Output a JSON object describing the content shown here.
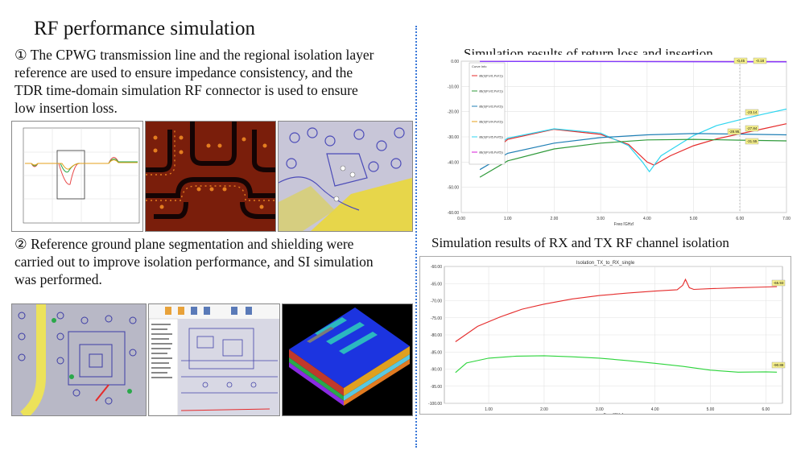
{
  "left": {
    "title": "RF performance simulation",
    "para1_lines": [
      "① The CPWG transmission line and the regional isolation layer",
      "reference are used to ensure impedance consistency, and the",
      "TDR time-domain simulation RF connector is used to ensure",
      "low insertion loss."
    ],
    "para2_lines": [
      "② Reference ground plane segmentation and shielding were",
      "carried out to improve isolation performance, and SI simulation",
      "was performed."
    ]
  },
  "right": {
    "chart1_title": "Simulation results of return loss and insertion",
    "chart2_title": "Simulation results of RX and TX RF channel isolation",
    "chart2_inner_title": "Isolation_TX_to_RX_single"
  },
  "colors": {
    "divider": "#3a78d8",
    "red": "#e52b2b",
    "green": "#2fa84f",
    "cyan": "#2fd6f0",
    "teal": "#1d8a5a",
    "marker": "#f6f08a"
  },
  "chart_data": [
    {
      "type": "line",
      "title": "",
      "xlabel": "Freq [GHz]",
      "ylabel": "",
      "xlim": [
        0,
        7
      ],
      "ylim": [
        -60,
        0
      ],
      "x_ticks": [
        "0.00",
        "1.00",
        "2.00",
        "3.00",
        "4.00",
        "5.00",
        "6.00",
        "7.00"
      ],
      "y_ticks": [
        "0.00",
        "-10.00",
        "-20.00",
        "-30.00",
        "-40.00",
        "-50.00",
        "-60.00"
      ],
      "legend_position": "top-left",
      "legend_entries": [
        "dB(S(Port1,Port1))",
        "dB(S(Port2,Port1))",
        "dB(S(Port3,Port3))",
        "dB(S(Port4,Port3))",
        "dB(S(Port5,Port5))",
        "dB(S(Port6,Port5))"
      ],
      "marker_labels": [
        "-0.45",
        "-0.18",
        "-23.14",
        "-27.84",
        "-28.95",
        "-31.55"
      ],
      "series": [
        {
          "color": "#e52b2b",
          "x": [
            0.4,
            1.0,
            2.0,
            3.0,
            3.6,
            4.0,
            4.15,
            4.5,
            5.0,
            5.5,
            6.0,
            6.5,
            7.0
          ],
          "y": [
            -40.5,
            -31.0,
            -27.0,
            -29.0,
            -33.0,
            -40.0,
            -41.2,
            -37.5,
            -33.5,
            -30.8,
            -28.8,
            -26.8,
            -24.8
          ]
        },
        {
          "color": "#2fd6f0",
          "x": [
            0.4,
            1.0,
            2.0,
            3.0,
            3.6,
            3.9,
            4.05,
            4.3,
            5.0,
            5.5,
            6.0,
            6.5,
            7.0
          ],
          "y": [
            -38.0,
            -30.5,
            -26.8,
            -28.5,
            -33.5,
            -40.0,
            -43.8,
            -37.5,
            -29.5,
            -25.5,
            -23.2,
            -21.0,
            -19.0
          ]
        },
        {
          "color": "#2f9a3a",
          "x": [
            0.4,
            1.0,
            2.0,
            3.0,
            4.0,
            5.0,
            6.0,
            7.0
          ],
          "y": [
            -46.0,
            -39.5,
            -34.8,
            -32.5,
            -31.2,
            -31.0,
            -31.3,
            -31.6
          ]
        },
        {
          "color": "#1f7fb5",
          "x": [
            0.4,
            1.0,
            2.0,
            3.0,
            4.0,
            5.0,
            6.0,
            7.0
          ],
          "y": [
            -43.0,
            -36.5,
            -32.5,
            -30.3,
            -29.2,
            -28.7,
            -28.9,
            -29.2
          ]
        },
        {
          "color": "#d81bd8",
          "x": [
            0.4,
            7.0
          ],
          "y": [
            -0.05,
            -0.2
          ]
        },
        {
          "color": "#7a3cff",
          "x": [
            0.4,
            7.0
          ],
          "y": [
            -0.08,
            -0.3
          ]
        }
      ]
    },
    {
      "type": "line",
      "title": "Isolation_TX_to_RX_single",
      "xlabel": "Freq [GHz]",
      "ylabel": "",
      "xlim": [
        0.2,
        6.3
      ],
      "ylim": [
        -100,
        -60
      ],
      "x_ticks": [
        "1.00",
        "2.00",
        "3.00",
        "4.00",
        "5.00",
        "6.00"
      ],
      "y_ticks": [
        "-60.00",
        "-65.00",
        "-70.00",
        "-75.00",
        "-80.00",
        "-85.00",
        "-90.00",
        "-95.00",
        "-100.00"
      ],
      "marker_labels": [
        "-65.93",
        "-90.88"
      ],
      "series": [
        {
          "color": "#e52b2b",
          "x": [
            0.4,
            0.8,
            1.2,
            1.6,
            2.0,
            2.5,
            3.0,
            3.5,
            4.0,
            4.4,
            4.5,
            4.55,
            4.62,
            4.7,
            5.0,
            5.5,
            6.0,
            6.2
          ],
          "y": [
            -82.0,
            -77.5,
            -74.8,
            -72.5,
            -71.0,
            -69.5,
            -68.5,
            -67.8,
            -67.2,
            -66.8,
            -65.5,
            -63.8,
            -66.2,
            -66.7,
            -66.5,
            -66.2,
            -66.0,
            -65.9
          ]
        },
        {
          "color": "#2bd43a",
          "x": [
            0.4,
            0.6,
            1.0,
            1.5,
            2.0,
            2.5,
            3.0,
            3.5,
            4.0,
            4.5,
            5.0,
            5.5,
            6.0,
            6.2
          ],
          "y": [
            -91.0,
            -88.2,
            -86.8,
            -86.2,
            -86.1,
            -86.4,
            -86.8,
            -87.5,
            -88.3,
            -89.2,
            -90.3,
            -90.9,
            -90.8,
            -90.9
          ]
        }
      ]
    }
  ]
}
